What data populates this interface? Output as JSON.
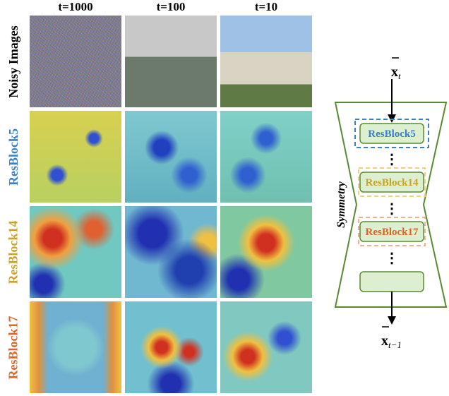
{
  "columns": [
    "t=1000",
    "t=100",
    "t=10"
  ],
  "rows": [
    "Noisy Images",
    "ResBlock5",
    "ResBlock14",
    "ResBlock17"
  ],
  "diagram": {
    "input": "x",
    "input_sub": "t",
    "label": "Symmetry",
    "blocks": [
      "ResBlock5",
      "ResBlock14",
      "ResBlock17"
    ],
    "dots": "⋮",
    "output": "x",
    "output_sub": "t−1"
  }
}
